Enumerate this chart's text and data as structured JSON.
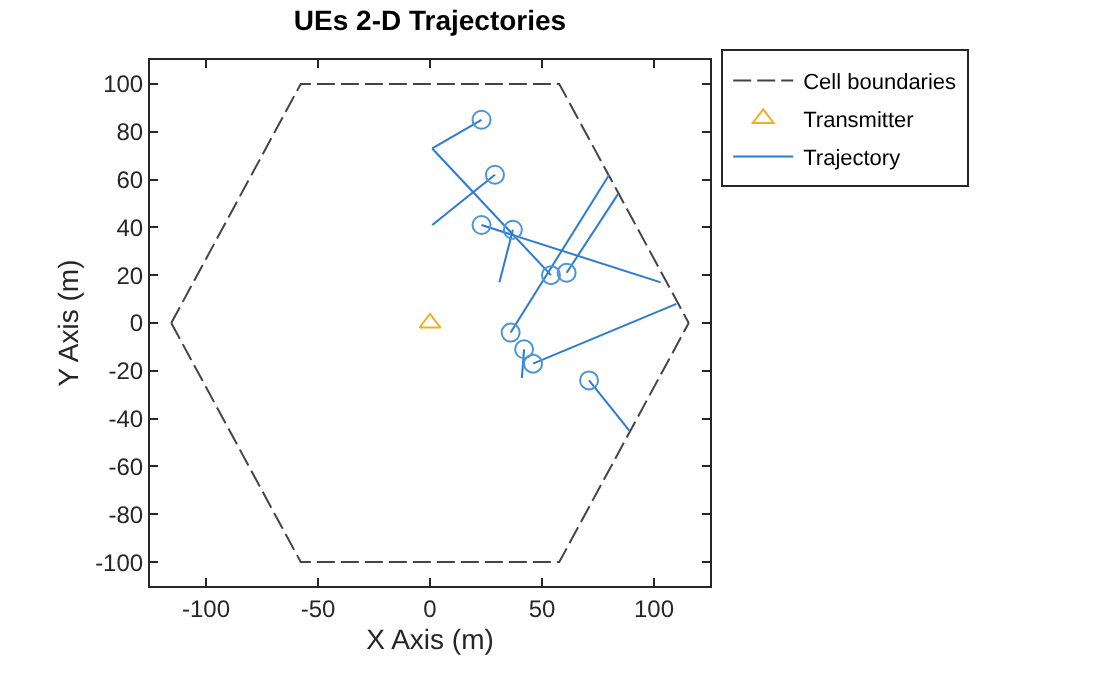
{
  "chart_data": {
    "type": "line",
    "title": "UEs 2-D Trajectories",
    "xlabel": "X Axis (m)",
    "ylabel": "Y Axis (m)",
    "xlim": [
      -125,
      125
    ],
    "ylim": [
      -110,
      110
    ],
    "xticks": [
      -100,
      -50,
      0,
      50,
      100
    ],
    "yticks": [
      -100,
      -80,
      -60,
      -40,
      -20,
      0,
      20,
      40,
      60,
      80,
      100
    ],
    "grid": false,
    "legend": "top right",
    "series": [
      {
        "name": "Cell boundaries",
        "line_style": "dashed",
        "marker": "none",
        "color": "#444444",
        "x": [
          -115.5,
          -57.7,
          57.7,
          115.5
        ],
        "values": [
          0,
          100,
          100,
          0
        ]
      },
      {
        "line_style": "dashed",
        "marker": "none",
        "color": "#444444",
        "x": [
          -115.5,
          -57.7,
          57.7,
          115.5
        ],
        "values": [
          0,
          -100,
          -100,
          0
        ]
      },
      {
        "name": "Transmitter",
        "type": "scatter",
        "marker": "triangle",
        "color": "#edb120",
        "x": [
          0
        ],
        "values": [
          0
        ]
      },
      {
        "name": "Trajectory",
        "line_style": "solid",
        "marker": "none",
        "color": "#2b7bd4",
        "x": [
          23,
          1,
          null,
          29,
          1,
          null,
          23,
          103,
          null,
          37,
          31,
          null,
          54,
          1,
          null,
          61,
          84,
          null,
          36,
          80,
          null,
          42,
          41,
          null,
          46,
          110,
          null,
          71,
          89
        ],
        "values": [
          85,
          73,
          null,
          62,
          41,
          null,
          41,
          17,
          null,
          39,
          17,
          null,
          20,
          73,
          null,
          21,
          54,
          null,
          -4,
          62,
          null,
          -11,
          -23,
          null,
          -17,
          8,
          null,
          -24,
          -45
        ]
      },
      {
        "type": "scatter",
        "marker": "circle",
        "color": "#4d94dc",
        "x": [
          23,
          29,
          23,
          37,
          54,
          61,
          36,
          42,
          46,
          71
        ],
        "values": [
          85,
          62,
          41,
          39,
          20,
          21,
          -4,
          -11,
          -17,
          -24
        ]
      }
    ]
  }
}
